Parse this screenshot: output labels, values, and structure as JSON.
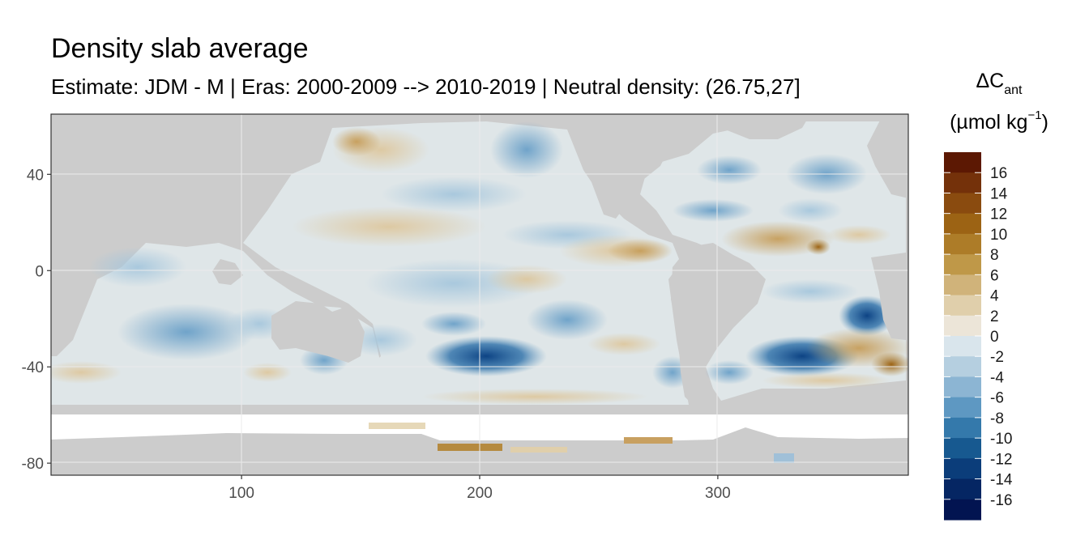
{
  "chart_data": {
    "type": "heatmap",
    "title": "Density slab average",
    "subtitle": "Estimate: JDM - M | Eras: 2000-2009 --> 2010-2019 | Neutral density: (26.75,27]",
    "xlabel": "",
    "ylabel": "",
    "x_ticks": [
      100,
      200,
      300
    ],
    "y_ticks": [
      40,
      0,
      -40,
      -80
    ],
    "xlim": [
      20,
      380
    ],
    "ylim": [
      -85,
      65
    ],
    "grid": true,
    "legend": {
      "title_symbol": "ΔC",
      "title_subscript": "ant",
      "unit_prefix": "(µmol kg",
      "unit_superscript": "−1",
      "unit_suffix": ")",
      "placement": "right",
      "labels": [
        "16",
        "14",
        "12",
        "10",
        "8",
        "6",
        "4",
        "2",
        "0",
        "-2",
        "-4",
        "-6",
        "-8",
        "-10",
        "-12",
        "-14",
        "-16"
      ],
      "colors": [
        "#5c1803",
        "#74310a",
        "#8a4b0f",
        "#9c6314",
        "#ad7c28",
        "#bf9848",
        "#d0b37a",
        "#e0cfab",
        "#ece5d8",
        "#d9e5ec",
        "#b5cfe0",
        "#8cb5d3",
        "#5e98c2",
        "#3479ab",
        "#175990",
        "#0b3d7a",
        "#052663",
        "#021451"
      ]
    },
    "colors": {
      "land": "#cccccc",
      "no_data": "#ffffff",
      "panel_border": "#333333",
      "grid": "#ebebeb"
    }
  }
}
